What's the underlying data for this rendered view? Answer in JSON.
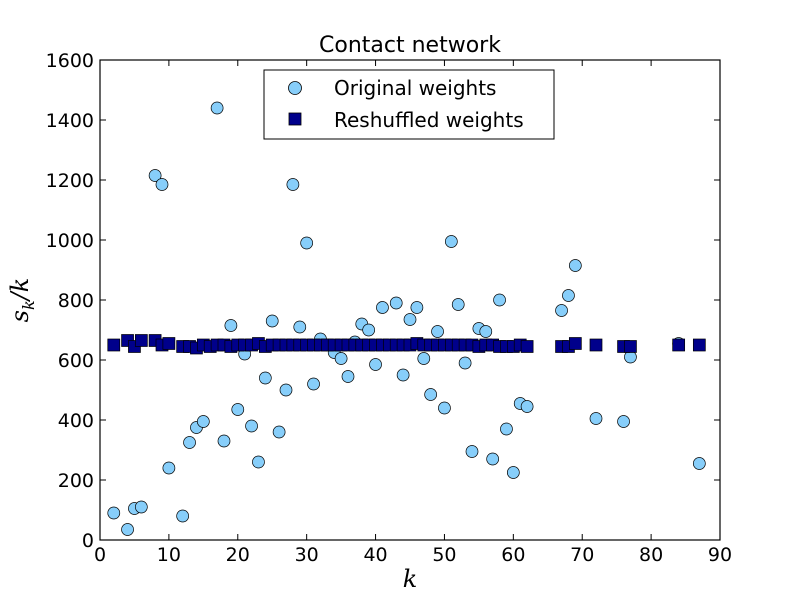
{
  "chart_data": {
    "type": "scatter",
    "title": "Contact network",
    "xlabel": "k",
    "ylabel_main": "s",
    "ylabel_sub": "k",
    "ylabel_tail": "/k",
    "xlim": [
      0,
      90
    ],
    "ylim": [
      0,
      1600
    ],
    "xticks": [
      "0",
      "10",
      "20",
      "30",
      "40",
      "50",
      "60",
      "70",
      "80",
      "90"
    ],
    "yticks": [
      "0",
      "200",
      "400",
      "600",
      "800",
      "1000",
      "1200",
      "1400",
      "1600"
    ],
    "legend_position": "top-center",
    "series": [
      {
        "name": "Original weights",
        "marker": "circle",
        "color": "#87CEFA",
        "points": [
          [
            2,
            90
          ],
          [
            4,
            35
          ],
          [
            5,
            105
          ],
          [
            6,
            110
          ],
          [
            8,
            1215
          ],
          [
            9,
            1185
          ],
          [
            10,
            240
          ],
          [
            12,
            80
          ],
          [
            13,
            325
          ],
          [
            14,
            375
          ],
          [
            15,
            395
          ],
          [
            17,
            1440
          ],
          [
            18,
            330
          ],
          [
            19,
            715
          ],
          [
            20,
            435
          ],
          [
            21,
            620
          ],
          [
            22,
            380
          ],
          [
            23,
            260
          ],
          [
            24,
            540
          ],
          [
            25,
            730
          ],
          [
            26,
            360
          ],
          [
            27,
            500
          ],
          [
            28,
            1185
          ],
          [
            29,
            710
          ],
          [
            30,
            990
          ],
          [
            31,
            520
          ],
          [
            32,
            670
          ],
          [
            33,
            650
          ],
          [
            34,
            625
          ],
          [
            35,
            605
          ],
          [
            36,
            545
          ],
          [
            37,
            660
          ],
          [
            38,
            720
          ],
          [
            39,
            700
          ],
          [
            40,
            585
          ],
          [
            41,
            775
          ],
          [
            43,
            790
          ],
          [
            44,
            550
          ],
          [
            45,
            735
          ],
          [
            46,
            775
          ],
          [
            47,
            605
          ],
          [
            48,
            485
          ],
          [
            49,
            695
          ],
          [
            50,
            440
          ],
          [
            51,
            995
          ],
          [
            52,
            785
          ],
          [
            53,
            590
          ],
          [
            54,
            295
          ],
          [
            55,
            705
          ],
          [
            56,
            695
          ],
          [
            57,
            270
          ],
          [
            58,
            800
          ],
          [
            59,
            370
          ],
          [
            60,
            225
          ],
          [
            61,
            455
          ],
          [
            62,
            445
          ],
          [
            67,
            765
          ],
          [
            68,
            815
          ],
          [
            69,
            915
          ],
          [
            72,
            405
          ],
          [
            76,
            395
          ],
          [
            77,
            610
          ],
          [
            84,
            655
          ],
          [
            87,
            255
          ]
        ]
      },
      {
        "name": "Reshuffled weights",
        "marker": "square",
        "color": "#00008B",
        "points": [
          [
            2,
            650
          ],
          [
            4,
            665
          ],
          [
            5,
            645
          ],
          [
            6,
            665
          ],
          [
            8,
            665
          ],
          [
            9,
            650
          ],
          [
            10,
            655
          ],
          [
            12,
            645
          ],
          [
            13,
            645
          ],
          [
            14,
            640
          ],
          [
            15,
            650
          ],
          [
            16,
            645
          ],
          [
            17,
            650
          ],
          [
            18,
            650
          ],
          [
            19,
            645
          ],
          [
            20,
            650
          ],
          [
            21,
            650
          ],
          [
            22,
            650
          ],
          [
            23,
            655
          ],
          [
            24,
            645
          ],
          [
            25,
            650
          ],
          [
            26,
            650
          ],
          [
            27,
            650
          ],
          [
            28,
            650
          ],
          [
            29,
            650
          ],
          [
            30,
            650
          ],
          [
            31,
            650
          ],
          [
            32,
            650
          ],
          [
            33,
            650
          ],
          [
            34,
            650
          ],
          [
            35,
            650
          ],
          [
            36,
            650
          ],
          [
            37,
            650
          ],
          [
            38,
            650
          ],
          [
            39,
            650
          ],
          [
            40,
            650
          ],
          [
            41,
            650
          ],
          [
            42,
            650
          ],
          [
            43,
            650
          ],
          [
            44,
            650
          ],
          [
            45,
            650
          ],
          [
            46,
            655
          ],
          [
            47,
            650
          ],
          [
            48,
            650
          ],
          [
            49,
            650
          ],
          [
            50,
            650
          ],
          [
            51,
            650
          ],
          [
            52,
            650
          ],
          [
            53,
            650
          ],
          [
            54,
            650
          ],
          [
            55,
            645
          ],
          [
            56,
            650
          ],
          [
            57,
            650
          ],
          [
            58,
            645
          ],
          [
            59,
            645
          ],
          [
            60,
            645
          ],
          [
            61,
            650
          ],
          [
            62,
            645
          ],
          [
            67,
            645
          ],
          [
            68,
            645
          ],
          [
            69,
            655
          ],
          [
            72,
            650
          ],
          [
            76,
            645
          ],
          [
            77,
            645
          ],
          [
            84,
            650
          ],
          [
            87,
            650
          ]
        ]
      }
    ]
  }
}
